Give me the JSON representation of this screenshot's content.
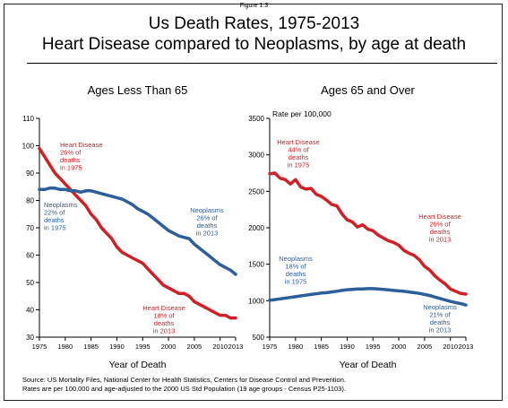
{
  "figure_label": "Figure 1.3",
  "title_line1": "Us Death Rates, 1975-2013",
  "title_line2": "Heart Disease compared to Neoplasms, by age at death",
  "source_line1": "Source: US Mortality Files, National Center for Health Statistics, Centers for Disease Control and Prevention.",
  "source_line2": "Rates are per 100,000 and age-adjusted to the 2000 US Std Population (19 age groups - Census P25-1103).",
  "colors": {
    "heart": "#d11f25",
    "neo": "#2b5e9a",
    "text": "#000000"
  },
  "chart_data": [
    {
      "type": "line",
      "title": "Ages Less Than 65",
      "xlabel": "Year of Death",
      "ylabel": "",
      "xlim": [
        1975,
        2013
      ],
      "ylim": [
        30,
        110
      ],
      "xticks": [
        "1975",
        "1980",
        "1985",
        "1990",
        "1995",
        "2000",
        "2005",
        "2010",
        "2013"
      ],
      "xtick_values": [
        1975,
        1980,
        1985,
        1990,
        1995,
        2000,
        2005,
        2010,
        2013
      ],
      "yticks": [
        30,
        40,
        50,
        60,
        70,
        80,
        90,
        100,
        110
      ],
      "series": [
        {
          "key": "heart",
          "x": [
            1975,
            1976,
            1977,
            1978,
            1979,
            1980,
            1981,
            1982,
            1983,
            1984,
            1985,
            1986,
            1987,
            1988,
            1989,
            1990,
            1991,
            1992,
            1993,
            1994,
            1995,
            1996,
            1997,
            1998,
            1999,
            2000,
            2001,
            2002,
            2003,
            2004,
            2005,
            2006,
            2007,
            2008,
            2009,
            2010,
            2011,
            2012,
            2013
          ],
          "values": [
            99,
            96,
            93,
            90,
            88,
            86,
            84,
            82,
            80,
            78,
            75,
            73,
            70,
            68,
            66,
            63,
            61,
            60,
            59,
            58,
            57,
            55,
            53,
            51,
            49,
            48,
            47,
            46,
            46,
            45,
            43,
            42,
            41,
            40,
            39,
            38,
            38,
            37,
            37
          ]
        },
        {
          "key": "neo",
          "x": [
            1975,
            1976,
            1977,
            1978,
            1979,
            1980,
            1981,
            1982,
            1983,
            1984,
            1985,
            1986,
            1987,
            1988,
            1989,
            1990,
            1991,
            1992,
            1993,
            1994,
            1995,
            1996,
            1997,
            1998,
            1999,
            2000,
            2001,
            2002,
            2003,
            2004,
            2005,
            2006,
            2007,
            2008,
            2009,
            2010,
            2011,
            2012,
            2013
          ],
          "values": [
            84,
            84,
            84.5,
            84.5,
            84,
            84,
            83.5,
            83.5,
            83,
            83.5,
            83.5,
            83,
            82.5,
            82,
            81.5,
            81,
            80.5,
            79.5,
            78.5,
            77,
            76,
            75,
            73.5,
            72,
            70.5,
            69,
            68,
            67,
            66.5,
            66,
            64,
            62.5,
            61,
            59.5,
            58,
            56.5,
            55.5,
            54.5,
            53
          ]
        }
      ],
      "annotations": [
        {
          "key": "heart",
          "lines": [
            "Heart Disease",
            "26%  of",
            "deaths",
            "in 1975"
          ]
        },
        {
          "key": "neo",
          "lines": [
            "Neoplasms",
            "22%  of",
            "deaths",
            "in 1975"
          ]
        },
        {
          "key": "neo",
          "lines": [
            "Neoplasms",
            "26%  of",
            "deaths",
            "in 2013"
          ]
        },
        {
          "key": "heart",
          "lines": [
            "Heart Disease",
            "18%  of",
            "deaths",
            "in 2013"
          ]
        }
      ]
    },
    {
      "type": "line",
      "title": "Ages 65 and Over",
      "xlabel": "Year of Death",
      "ylabel": "Rate per 100,000",
      "xlim": [
        1975,
        2013
      ],
      "ylim": [
        500,
        3500
      ],
      "xticks": [
        "1975",
        "1980",
        "1985",
        "1990",
        "1995",
        "2000",
        "2005",
        "2010",
        "2013"
      ],
      "xtick_values": [
        1975,
        1980,
        1985,
        1990,
        1995,
        2000,
        2005,
        2010,
        2013
      ],
      "yticks": [
        500,
        1000,
        1500,
        2000,
        2500,
        3000,
        3500
      ],
      "series": [
        {
          "key": "heart",
          "x": [
            1975,
            1976,
            1977,
            1978,
            1979,
            1980,
            1981,
            1982,
            1983,
            1984,
            1985,
            1986,
            1987,
            1988,
            1989,
            1990,
            1991,
            1992,
            1993,
            1994,
            1995,
            1996,
            1997,
            1998,
            1999,
            2000,
            2001,
            2002,
            2003,
            2004,
            2005,
            2006,
            2007,
            2008,
            2009,
            2010,
            2011,
            2012,
            2013
          ],
          "values": [
            2740,
            2750,
            2680,
            2660,
            2600,
            2660,
            2560,
            2530,
            2540,
            2460,
            2430,
            2380,
            2320,
            2300,
            2190,
            2110,
            2080,
            2010,
            2040,
            1980,
            1960,
            1900,
            1860,
            1820,
            1800,
            1760,
            1690,
            1650,
            1620,
            1560,
            1470,
            1420,
            1340,
            1280,
            1230,
            1160,
            1130,
            1100,
            1090
          ]
        },
        {
          "key": "neo",
          "x": [
            1975,
            1976,
            1977,
            1978,
            1979,
            1980,
            1981,
            1982,
            1983,
            1984,
            1985,
            1986,
            1987,
            1988,
            1989,
            1990,
            1991,
            1992,
            1993,
            1994,
            1995,
            1996,
            1997,
            1998,
            1999,
            2000,
            2001,
            2002,
            2003,
            2004,
            2005,
            2006,
            2007,
            2008,
            2009,
            2010,
            2011,
            2012,
            2013
          ],
          "values": [
            1005,
            1015,
            1025,
            1035,
            1045,
            1055,
            1065,
            1075,
            1085,
            1095,
            1105,
            1110,
            1120,
            1130,
            1140,
            1150,
            1155,
            1160,
            1162,
            1165,
            1165,
            1160,
            1155,
            1148,
            1140,
            1135,
            1130,
            1120,
            1110,
            1100,
            1085,
            1070,
            1050,
            1030,
            1010,
            990,
            975,
            960,
            940
          ]
        }
      ],
      "annotations": [
        {
          "key": "heart",
          "lines": [
            "Heart Disease",
            "44%  of",
            "deaths",
            "in 1975"
          ]
        },
        {
          "key": "heart",
          "lines": [
            "Heart Disease",
            "26%  of",
            "deaths",
            "in 2013"
          ]
        },
        {
          "key": "neo",
          "lines": [
            "Neoplasms",
            "18%  of",
            "deaths",
            "in 1975"
          ]
        },
        {
          "key": "neo",
          "lines": [
            "Neoplasms",
            "21%  of",
            "deaths",
            "in 2013"
          ]
        }
      ]
    }
  ]
}
